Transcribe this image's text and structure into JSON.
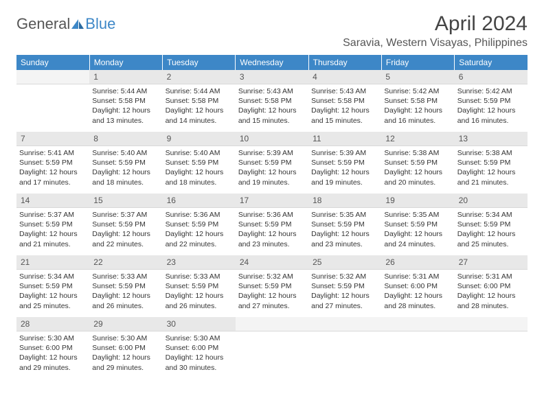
{
  "logo": {
    "text1": "General",
    "text2": "Blue"
  },
  "title": "April 2024",
  "location": "Saravia, Western Visayas, Philippines",
  "header_bg": "#3d87c7",
  "daynum_bg": "#e8e8e8",
  "weekdays": [
    "Sunday",
    "Monday",
    "Tuesday",
    "Wednesday",
    "Thursday",
    "Friday",
    "Saturday"
  ],
  "weeks": [
    [
      {
        "n": "",
        "lines": []
      },
      {
        "n": "1",
        "lines": [
          "Sunrise: 5:44 AM",
          "Sunset: 5:58 PM",
          "Daylight: 12 hours and 13 minutes."
        ]
      },
      {
        "n": "2",
        "lines": [
          "Sunrise: 5:44 AM",
          "Sunset: 5:58 PM",
          "Daylight: 12 hours and 14 minutes."
        ]
      },
      {
        "n": "3",
        "lines": [
          "Sunrise: 5:43 AM",
          "Sunset: 5:58 PM",
          "Daylight: 12 hours and 15 minutes."
        ]
      },
      {
        "n": "4",
        "lines": [
          "Sunrise: 5:43 AM",
          "Sunset: 5:58 PM",
          "Daylight: 12 hours and 15 minutes."
        ]
      },
      {
        "n": "5",
        "lines": [
          "Sunrise: 5:42 AM",
          "Sunset: 5:58 PM",
          "Daylight: 12 hours and 16 minutes."
        ]
      },
      {
        "n": "6",
        "lines": [
          "Sunrise: 5:42 AM",
          "Sunset: 5:59 PM",
          "Daylight: 12 hours and 16 minutes."
        ]
      }
    ],
    [
      {
        "n": "7",
        "lines": [
          "Sunrise: 5:41 AM",
          "Sunset: 5:59 PM",
          "Daylight: 12 hours and 17 minutes."
        ]
      },
      {
        "n": "8",
        "lines": [
          "Sunrise: 5:40 AM",
          "Sunset: 5:59 PM",
          "Daylight: 12 hours and 18 minutes."
        ]
      },
      {
        "n": "9",
        "lines": [
          "Sunrise: 5:40 AM",
          "Sunset: 5:59 PM",
          "Daylight: 12 hours and 18 minutes."
        ]
      },
      {
        "n": "10",
        "lines": [
          "Sunrise: 5:39 AM",
          "Sunset: 5:59 PM",
          "Daylight: 12 hours and 19 minutes."
        ]
      },
      {
        "n": "11",
        "lines": [
          "Sunrise: 5:39 AM",
          "Sunset: 5:59 PM",
          "Daylight: 12 hours and 19 minutes."
        ]
      },
      {
        "n": "12",
        "lines": [
          "Sunrise: 5:38 AM",
          "Sunset: 5:59 PM",
          "Daylight: 12 hours and 20 minutes."
        ]
      },
      {
        "n": "13",
        "lines": [
          "Sunrise: 5:38 AM",
          "Sunset: 5:59 PM",
          "Daylight: 12 hours and 21 minutes."
        ]
      }
    ],
    [
      {
        "n": "14",
        "lines": [
          "Sunrise: 5:37 AM",
          "Sunset: 5:59 PM",
          "Daylight: 12 hours and 21 minutes."
        ]
      },
      {
        "n": "15",
        "lines": [
          "Sunrise: 5:37 AM",
          "Sunset: 5:59 PM",
          "Daylight: 12 hours and 22 minutes."
        ]
      },
      {
        "n": "16",
        "lines": [
          "Sunrise: 5:36 AM",
          "Sunset: 5:59 PM",
          "Daylight: 12 hours and 22 minutes."
        ]
      },
      {
        "n": "17",
        "lines": [
          "Sunrise: 5:36 AM",
          "Sunset: 5:59 PM",
          "Daylight: 12 hours and 23 minutes."
        ]
      },
      {
        "n": "18",
        "lines": [
          "Sunrise: 5:35 AM",
          "Sunset: 5:59 PM",
          "Daylight: 12 hours and 23 minutes."
        ]
      },
      {
        "n": "19",
        "lines": [
          "Sunrise: 5:35 AM",
          "Sunset: 5:59 PM",
          "Daylight: 12 hours and 24 minutes."
        ]
      },
      {
        "n": "20",
        "lines": [
          "Sunrise: 5:34 AM",
          "Sunset: 5:59 PM",
          "Daylight: 12 hours and 25 minutes."
        ]
      }
    ],
    [
      {
        "n": "21",
        "lines": [
          "Sunrise: 5:34 AM",
          "Sunset: 5:59 PM",
          "Daylight: 12 hours and 25 minutes."
        ]
      },
      {
        "n": "22",
        "lines": [
          "Sunrise: 5:33 AM",
          "Sunset: 5:59 PM",
          "Daylight: 12 hours and 26 minutes."
        ]
      },
      {
        "n": "23",
        "lines": [
          "Sunrise: 5:33 AM",
          "Sunset: 5:59 PM",
          "Daylight: 12 hours and 26 minutes."
        ]
      },
      {
        "n": "24",
        "lines": [
          "Sunrise: 5:32 AM",
          "Sunset: 5:59 PM",
          "Daylight: 12 hours and 27 minutes."
        ]
      },
      {
        "n": "25",
        "lines": [
          "Sunrise: 5:32 AM",
          "Sunset: 5:59 PM",
          "Daylight: 12 hours and 27 minutes."
        ]
      },
      {
        "n": "26",
        "lines": [
          "Sunrise: 5:31 AM",
          "Sunset: 6:00 PM",
          "Daylight: 12 hours and 28 minutes."
        ]
      },
      {
        "n": "27",
        "lines": [
          "Sunrise: 5:31 AM",
          "Sunset: 6:00 PM",
          "Daylight: 12 hours and 28 minutes."
        ]
      }
    ],
    [
      {
        "n": "28",
        "lines": [
          "Sunrise: 5:30 AM",
          "Sunset: 6:00 PM",
          "Daylight: 12 hours and 29 minutes."
        ]
      },
      {
        "n": "29",
        "lines": [
          "Sunrise: 5:30 AM",
          "Sunset: 6:00 PM",
          "Daylight: 12 hours and 29 minutes."
        ]
      },
      {
        "n": "30",
        "lines": [
          "Sunrise: 5:30 AM",
          "Sunset: 6:00 PM",
          "Daylight: 12 hours and 30 minutes."
        ]
      },
      {
        "n": "",
        "lines": []
      },
      {
        "n": "",
        "lines": []
      },
      {
        "n": "",
        "lines": []
      },
      {
        "n": "",
        "lines": []
      }
    ]
  ]
}
